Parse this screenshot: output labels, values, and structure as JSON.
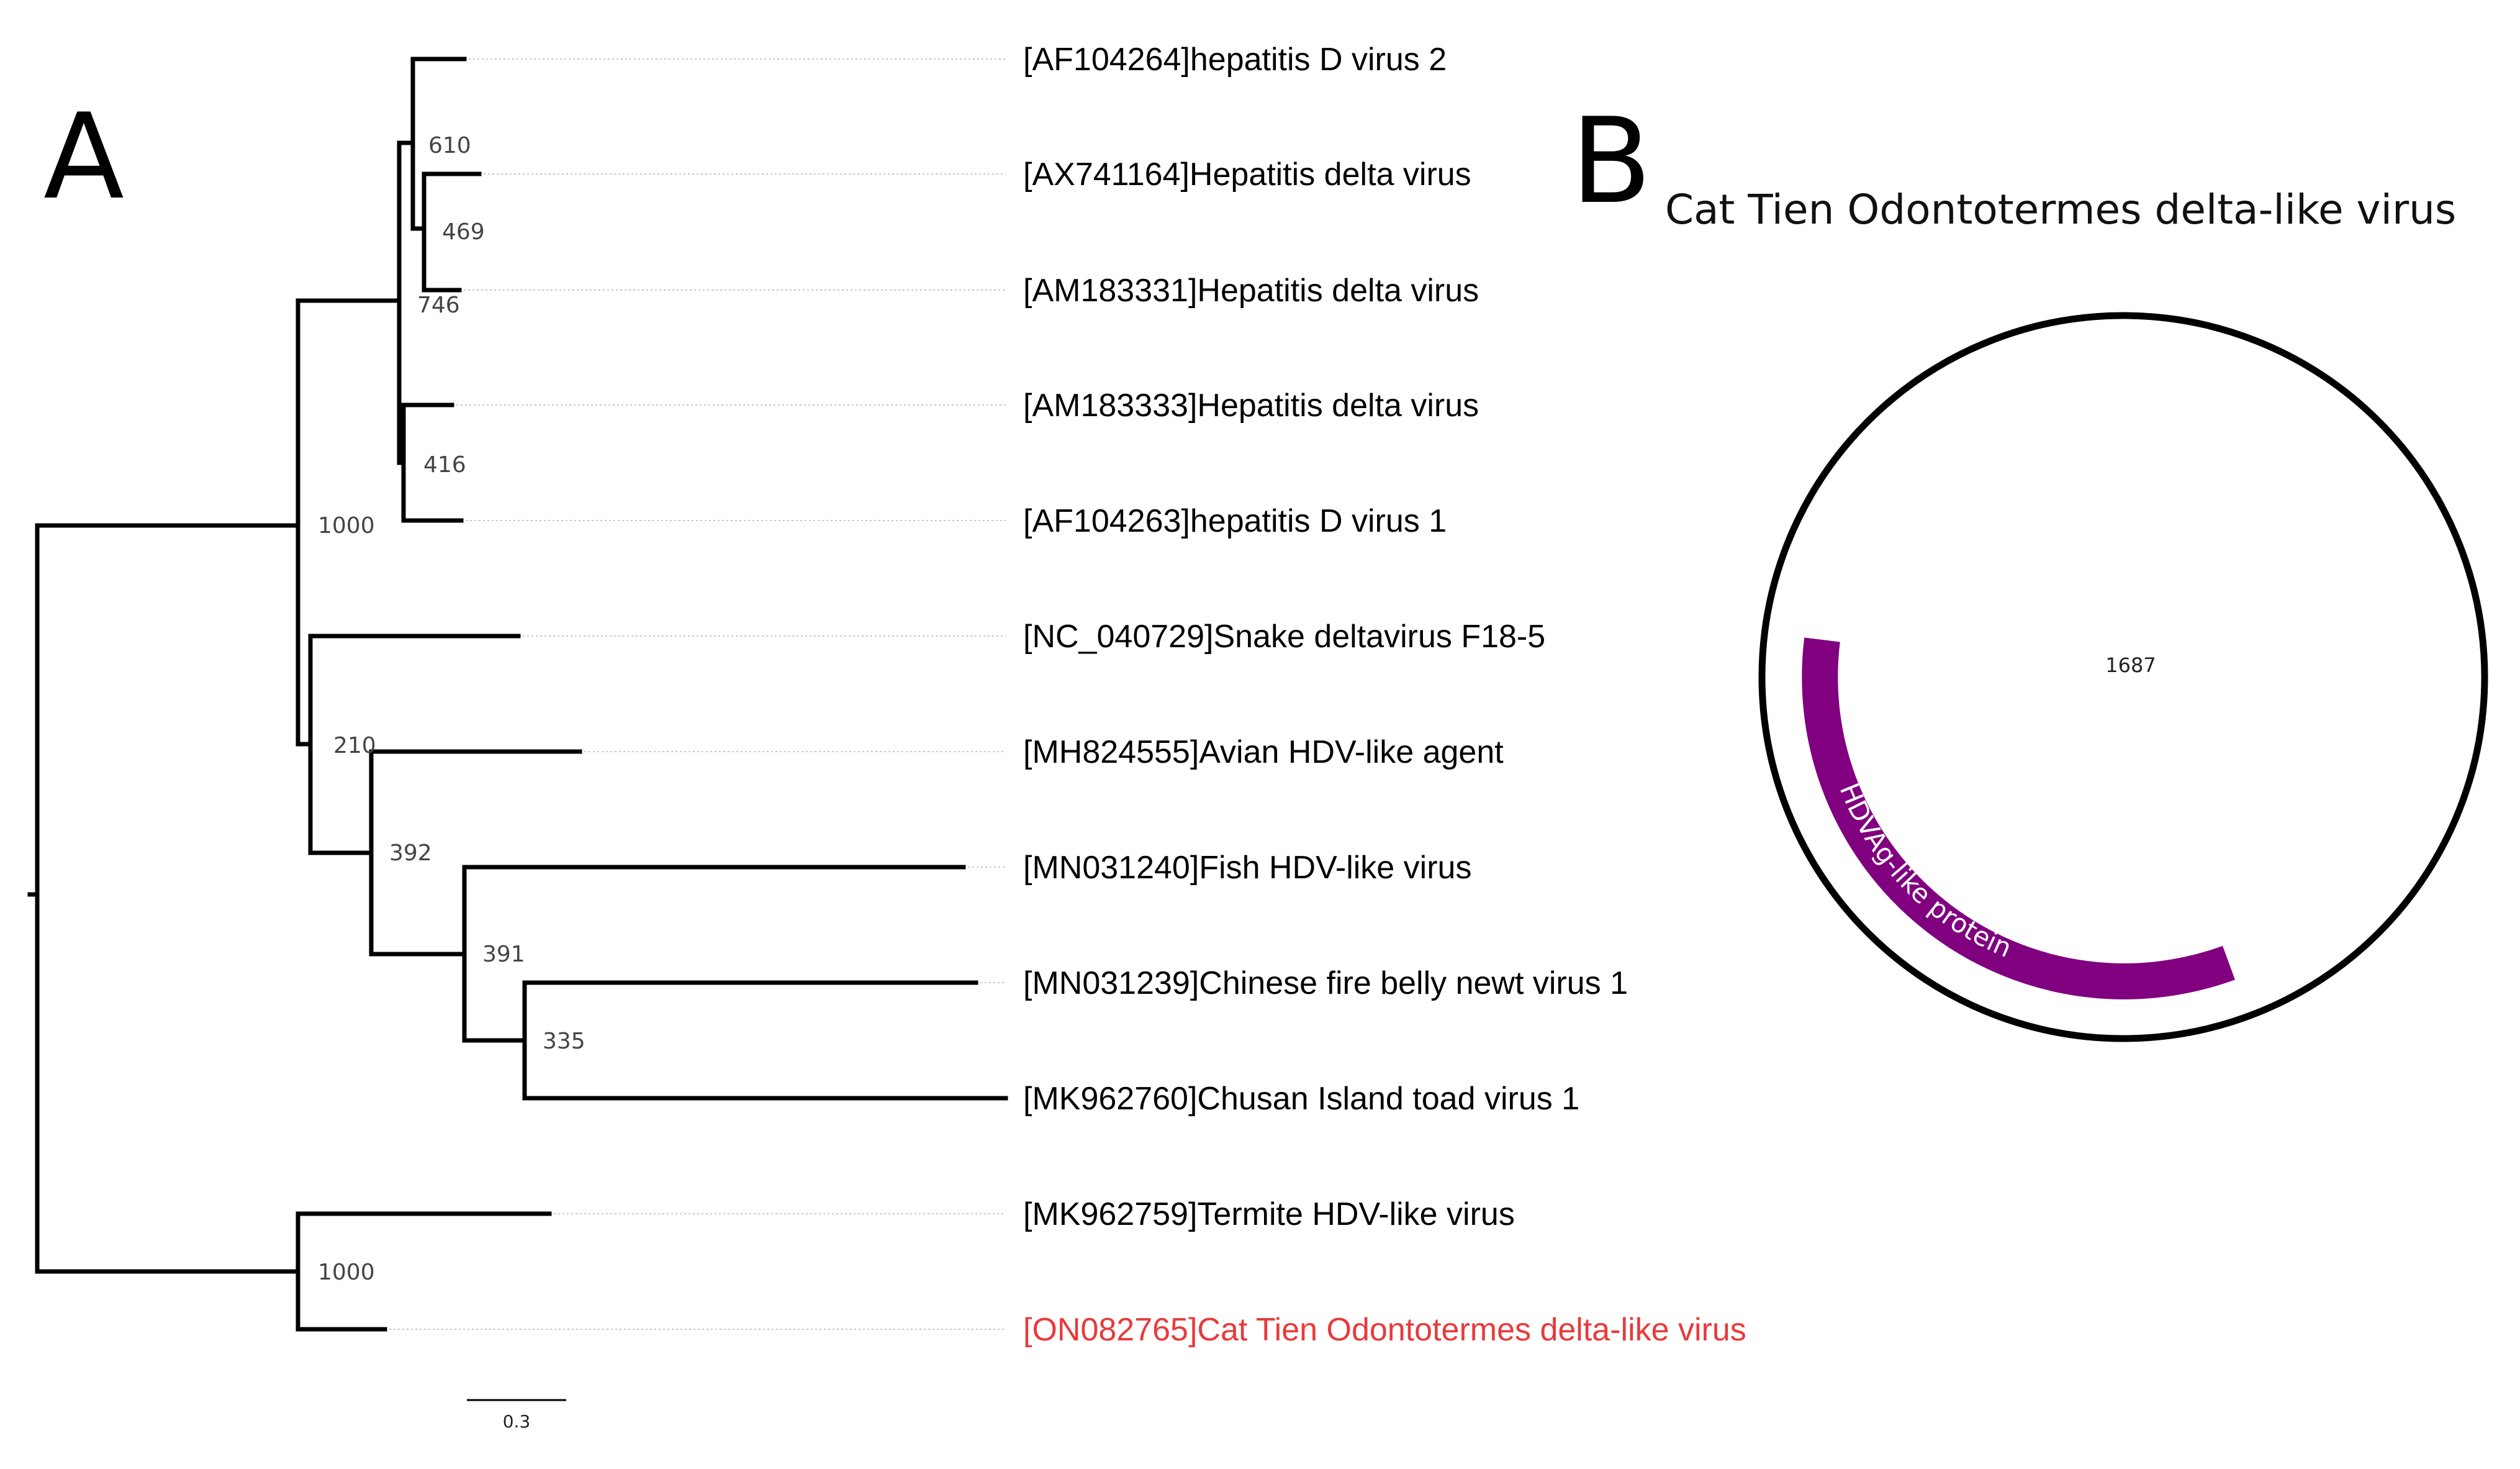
{
  "panelA": {
    "letter": "A",
    "taxa": [
      {
        "label": "[AF104264]hepatitis D virus 2"
      },
      {
        "label": "[AX741164]Hepatitis delta virus"
      },
      {
        "label": "[AM183331]Hepatitis delta virus"
      },
      {
        "label": "[AM183333]Hepatitis delta virus"
      },
      {
        "label": "[AF104263]hepatitis D virus 1"
      },
      {
        "label": "[NC_040729]Snake deltavirus F18-5"
      },
      {
        "label": "[MH824555]Avian HDV-like agent"
      },
      {
        "label": "[MN031240]Fish HDV-like virus"
      },
      {
        "label": "[MN031239]Chinese fire belly newt virus 1"
      },
      {
        "label": "[MK962760]Chusan Island toad virus 1"
      },
      {
        "label": "[MK962759]Termite HDV-like virus"
      },
      {
        "label": "[ON082765]Cat Tien Odontotermes delta-like virus",
        "highlight": true
      }
    ],
    "bootstrap": [
      "610",
      "469",
      "746",
      "416",
      "1000",
      "210",
      "392",
      "391",
      "335",
      "1000"
    ],
    "scale_bar": {
      "label": "0.3",
      "value": 0.3
    },
    "highlight_color": "#e83a3a"
  },
  "panelB": {
    "letter": "B",
    "title": "Cat Tien Odontotermes delta-like virus",
    "genome_length": "1687",
    "feature": {
      "label": "HDVAg-like protein",
      "color": "#800080"
    }
  }
}
